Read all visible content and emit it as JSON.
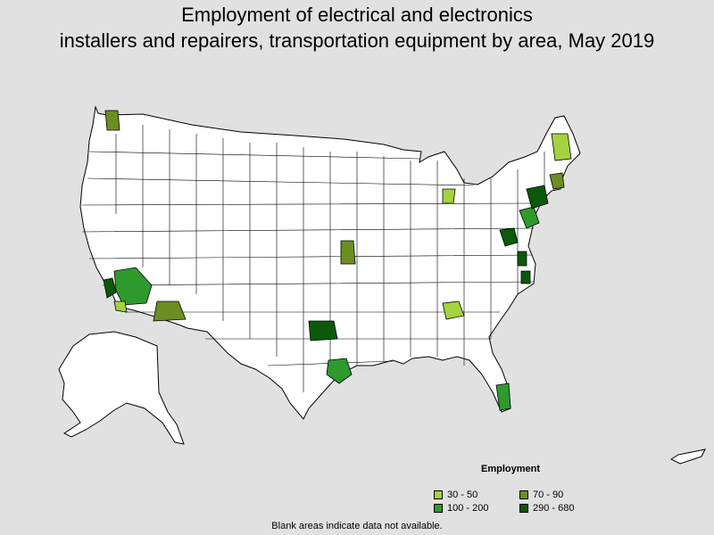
{
  "title_line1": "Employment of electrical and electronics",
  "title_line2": "installers and repairers, transportation equipment by area, May 2019",
  "legend": {
    "title": "Employment",
    "items": [
      {
        "label": "30 - 50",
        "color": "#a3d33e"
      },
      {
        "label": "70 - 90",
        "color": "#6b8e23"
      },
      {
        "label": "100 - 200",
        "color": "#2e9a2e"
      },
      {
        "label": "290 - 680",
        "color": "#0a5a0a"
      }
    ]
  },
  "footnote": "Blank areas indicate data not available.",
  "colors": {
    "background": "#e1e1e1",
    "land": "#ffffff",
    "border": "#000000"
  },
  "map_regions": [
    {
      "name": "seattle-area",
      "class": "70 - 90"
    },
    {
      "name": "los-angeles-area",
      "class": "290 - 680"
    },
    {
      "name": "inland-empire-area",
      "class": "100 - 200"
    },
    {
      "name": "san-diego-area",
      "class": "30 - 50"
    },
    {
      "name": "phoenix-area",
      "class": "70 - 90"
    },
    {
      "name": "dallas-area",
      "class": "290 - 680"
    },
    {
      "name": "houston-area",
      "class": "100 - 200"
    },
    {
      "name": "wichita-area",
      "class": "70 - 90"
    },
    {
      "name": "detroit-area",
      "class": "30 - 50"
    },
    {
      "name": "atlanta-area",
      "class": "30 - 50"
    },
    {
      "name": "south-florida-area",
      "class": "100 - 200"
    },
    {
      "name": "washington-area",
      "class": "290 - 680"
    },
    {
      "name": "baltimore-area",
      "class": "290 - 680"
    },
    {
      "name": "philadelphia-area",
      "class": "100 - 200"
    },
    {
      "name": "new-york-area",
      "class": "290 - 680"
    },
    {
      "name": "boston-area",
      "class": "70 - 90"
    },
    {
      "name": "maine-area",
      "class": "30 - 50"
    },
    {
      "name": "virginia-beach-area",
      "class": "290 - 680"
    }
  ]
}
